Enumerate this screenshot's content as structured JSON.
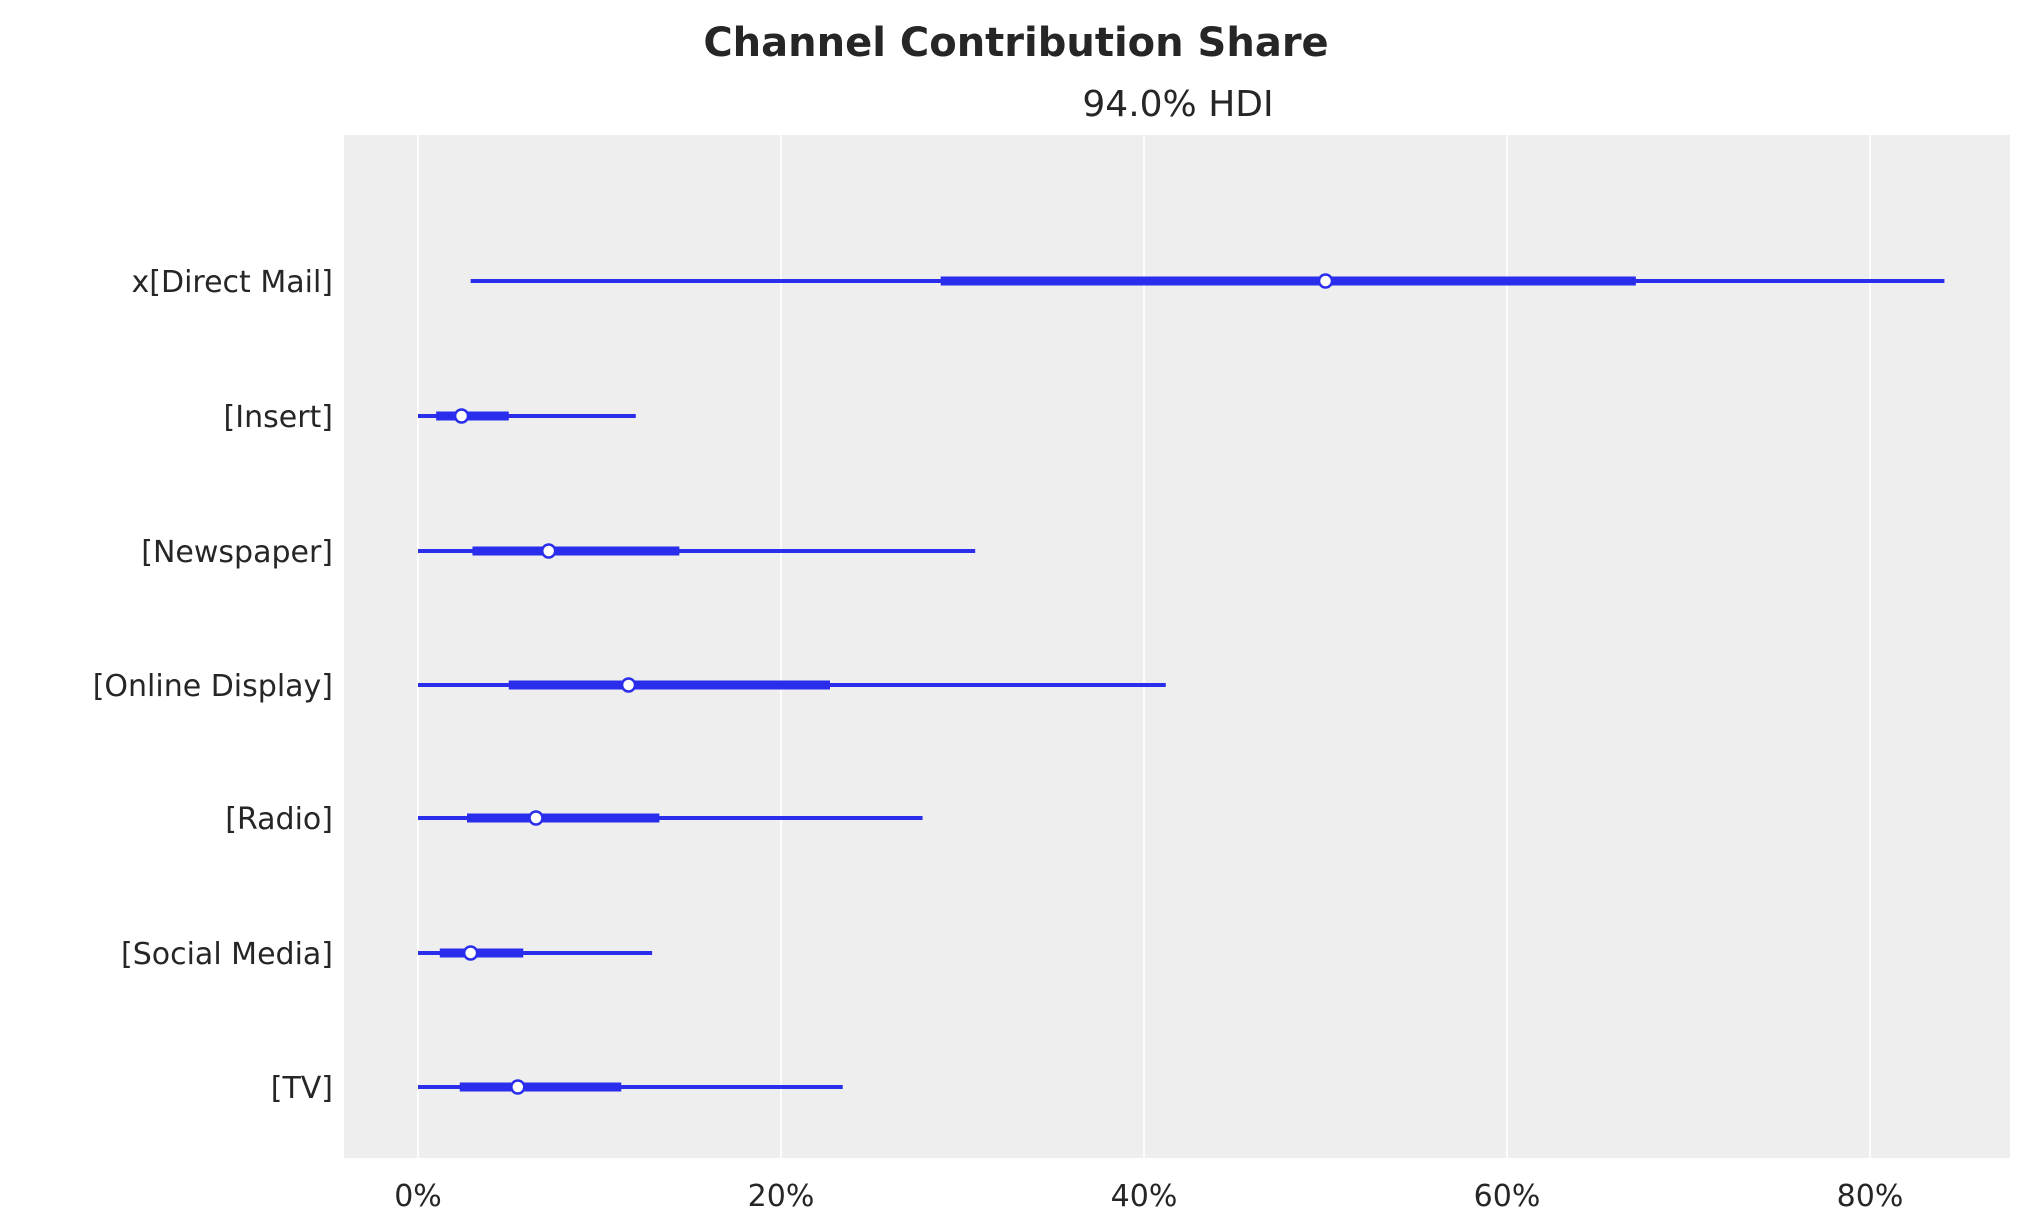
{
  "chart_data": {
    "type": "forest",
    "title": "Channel Contribution Share",
    "subtitle": "94.0% HDI",
    "xlabel": "",
    "ylabel": "",
    "xlim": [
      -4.2,
      87.5
    ],
    "x_ticks": [
      0,
      20,
      40,
      60,
      80
    ],
    "x_tick_labels": [
      "0%",
      "20%",
      "40%",
      "60%",
      "80%"
    ],
    "grid": "vertical",
    "colors": {
      "series": "#2a2eec",
      "background": "#eeeeee",
      "grid": "#ffffff"
    },
    "categories": [
      "x[Direct Mail]",
      "[Insert]",
      "[Newspaper]",
      "[Online Display]",
      "[Radio]",
      "[Social Media]",
      "[TV]"
    ],
    "intervals": [
      {
        "hdi_low": 2.9,
        "iqr_low": 28.8,
        "median": 50.0,
        "iqr_high": 67.1,
        "hdi_high": 84.1
      },
      {
        "hdi_low": 0.0,
        "iqr_low": 1.0,
        "median": 2.4,
        "iqr_high": 5.0,
        "hdi_high": 12.0
      },
      {
        "hdi_low": 0.0,
        "iqr_low": 3.0,
        "median": 7.2,
        "iqr_high": 14.4,
        "hdi_high": 30.7
      },
      {
        "hdi_low": 0.0,
        "iqr_low": 5.0,
        "median": 11.6,
        "iqr_high": 22.7,
        "hdi_high": 41.2
      },
      {
        "hdi_low": 0.0,
        "iqr_low": 2.7,
        "median": 6.5,
        "iqr_high": 13.3,
        "hdi_high": 27.8
      },
      {
        "hdi_low": 0.0,
        "iqr_low": 1.2,
        "median": 2.9,
        "iqr_high": 5.8,
        "hdi_high": 12.9
      },
      {
        "hdi_low": 0.0,
        "iqr_low": 2.3,
        "median": 5.5,
        "iqr_high": 11.2,
        "hdi_high": 23.4
      }
    ]
  }
}
